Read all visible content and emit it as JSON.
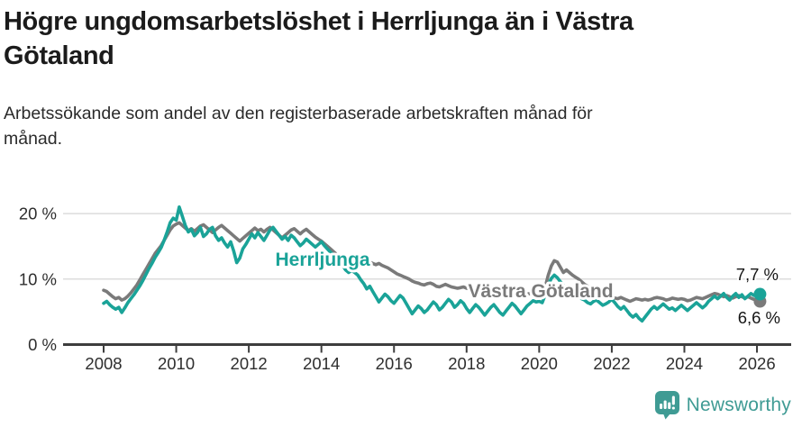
{
  "header": {
    "title_line1": "Högre ungdomsarbetslöshet i Herrljunga än i Västra",
    "title_line2": "Götaland",
    "subtitle_line1": "Arbetssökande som andel av den registerbaserade arbetskraften månad för",
    "subtitle_line2": "månad."
  },
  "footer": {
    "brand": "Newsworthy",
    "brand_color": "#3f9b94",
    "logo_icon": "newsworthy-speech-bubble-bar-chart-icon"
  },
  "chart_data": {
    "type": "line",
    "title": "Högre ungdomsarbetslöshet i Herrljunga än i Västra Götaland",
    "subtitle": "Arbetssökande som andel av den registerbaserade arbetskraften månad för månad.",
    "x_unit": "year-month",
    "x_start_year": 2008,
    "points_per_year": 12,
    "xlim": [
      2008,
      2026.17
    ],
    "ylim": [
      0,
      22
    ],
    "grid": "horizontal",
    "grid_color": "#dcdcdc",
    "axis_color": "#3d3d3d",
    "x_ticks": [
      2008,
      2010,
      2012,
      2014,
      2016,
      2018,
      2020,
      2022,
      2024,
      2026
    ],
    "y_ticks": [
      {
        "value": 0,
        "label": "0 %"
      },
      {
        "value": 10,
        "label": "10 %"
      },
      {
        "value": 20,
        "label": "20 %"
      }
    ],
    "series": [
      {
        "name": "Herrljunga",
        "color": "#1aa398",
        "end_value": 7.7,
        "end_label": "7,7 %",
        "values": [
          6.3,
          6.6,
          6.1,
          5.7,
          5.4,
          5.7,
          4.9,
          5.6,
          6.4,
          7.0,
          7.6,
          8.3,
          9.0,
          9.8,
          10.7,
          11.6,
          12.4,
          13.3,
          14.0,
          14.8,
          15.9,
          17.2,
          18.6,
          19.3,
          19.0,
          21.0,
          19.6,
          18.2,
          17.2,
          17.6,
          16.6,
          17.1,
          17.9,
          16.5,
          16.9,
          17.6,
          17.9,
          16.6,
          15.9,
          16.3,
          15.5,
          14.9,
          15.7,
          14.3,
          12.5,
          13.2,
          14.6,
          15.3,
          16.1,
          16.9,
          16.3,
          17.1,
          16.5,
          15.9,
          16.7,
          17.5,
          17.9,
          17.3,
          16.7,
          16.1,
          16.5,
          15.9,
          16.7,
          16.3,
          15.7,
          15.1,
          15.5,
          16.1,
          15.7,
          15.3,
          14.9,
          15.3,
          15.7,
          15.1,
          14.6,
          14.1,
          13.7,
          13.3,
          12.7,
          12.1,
          11.4,
          11.0,
          11.3,
          11.0,
          10.6,
          9.9,
          9.3,
          8.5,
          8.9,
          8.1,
          7.3,
          6.5,
          7.1,
          7.7,
          7.3,
          6.7,
          6.3,
          6.9,
          7.5,
          7.1,
          6.3,
          5.5,
          4.7,
          5.3,
          5.9,
          5.5,
          4.9,
          5.3,
          5.9,
          6.5,
          6.1,
          5.3,
          5.7,
          6.3,
          6.9,
          6.5,
          5.7,
          6.1,
          6.7,
          6.3,
          5.5,
          4.9,
          5.5,
          6.1,
          5.7,
          5.1,
          4.5,
          5.1,
          5.7,
          6.1,
          5.5,
          4.9,
          4.5,
          5.1,
          5.7,
          6.3,
          5.9,
          5.3,
          4.7,
          5.3,
          5.9,
          6.3,
          6.7,
          6.5,
          6.6,
          6.4,
          7.6,
          9.1,
          10.1,
          10.6,
          10.2,
          9.6,
          9.0,
          8.6,
          8.2,
          8.0,
          7.8,
          7.4,
          7.0,
          6.8,
          6.4,
          6.2,
          6.6,
          6.8,
          6.4,
          6.0,
          6.2,
          6.5,
          6.9,
          6.4,
          5.8,
          5.4,
          5.8,
          5.2,
          4.6,
          4.2,
          4.6,
          4.0,
          3.6,
          4.2,
          4.8,
          5.4,
          5.8,
          5.4,
          5.8,
          6.2,
          5.8,
          5.4,
          5.6,
          5.2,
          5.6,
          6.0,
          5.6,
          5.2,
          5.6,
          6.0,
          6.4,
          6.0,
          5.6,
          6.0,
          6.6,
          7.0,
          7.4,
          7.0,
          7.4,
          7.8,
          7.2,
          6.8,
          7.4,
          7.8,
          7.2,
          7.6,
          7.0,
          7.4,
          7.8,
          7.5,
          7.6,
          7.7
        ]
      },
      {
        "name": "Västra Götaland",
        "color": "#7a7a7a",
        "end_value": 6.6,
        "end_label": "6,6 %",
        "values": [
          8.3,
          8.1,
          7.7,
          7.3,
          7.0,
          7.2,
          6.8,
          7.0,
          7.4,
          7.9,
          8.5,
          9.1,
          9.9,
          10.7,
          11.5,
          12.3,
          13.1,
          13.9,
          14.5,
          15.1,
          15.9,
          16.7,
          17.5,
          18.1,
          18.4,
          18.6,
          18.2,
          17.8,
          17.4,
          17.7,
          17.3,
          17.7,
          18.1,
          18.3,
          17.9,
          17.5,
          17.1,
          17.5,
          17.9,
          18.2,
          17.8,
          17.4,
          17.0,
          16.6,
          16.2,
          15.8,
          16.2,
          16.6,
          17.0,
          17.4,
          17.8,
          17.4,
          17.6,
          17.2,
          17.6,
          17.9,
          17.5,
          17.1,
          16.7,
          16.3,
          16.7,
          17.1,
          17.5,
          17.7,
          17.3,
          16.9,
          17.3,
          17.6,
          17.2,
          16.8,
          16.4,
          16.1,
          15.8,
          15.4,
          15.0,
          14.6,
          14.2,
          13.8,
          13.4,
          13.0,
          12.7,
          12.4,
          12.2,
          12.1,
          12.3,
          12.5,
          12.6,
          12.4,
          12.6,
          12.4,
          12.2,
          12.4,
          12.1,
          11.9,
          11.7,
          11.4,
          11.1,
          10.8,
          10.6,
          10.4,
          10.2,
          10.0,
          9.7,
          9.5,
          9.4,
          9.2,
          9.1,
          9.3,
          9.4,
          9.2,
          8.9,
          8.8,
          9.0,
          9.2,
          9.0,
          8.8,
          8.7,
          8.6,
          8.7,
          8.8,
          8.6,
          8.5,
          8.4,
          8.6,
          8.8,
          8.6,
          8.4,
          8.2,
          8.1,
          8.2,
          8.3,
          8.2,
          8.1,
          8.0,
          7.9,
          8.1,
          8.3,
          8.1,
          7.9,
          7.8,
          7.7,
          7.8,
          7.9,
          8.0,
          8.1,
          8.0,
          8.8,
          10.6,
          12.0,
          12.8,
          12.6,
          11.8,
          11.0,
          11.4,
          11.0,
          10.6,
          10.3,
          10.0,
          9.6,
          9.2,
          8.9,
          8.6,
          8.3,
          8.6,
          8.3,
          8.0,
          7.8,
          7.6,
          7.3,
          7.1,
          7.0,
          7.2,
          7.0,
          6.8,
          6.6,
          6.8,
          7.0,
          6.9,
          6.8,
          6.9,
          6.8,
          6.9,
          7.1,
          7.2,
          7.1,
          7.0,
          6.8,
          6.9,
          7.1,
          7.0,
          6.9,
          7.0,
          6.9,
          6.7,
          6.8,
          7.0,
          7.2,
          7.1,
          7.0,
          7.2,
          7.4,
          7.6,
          7.8,
          7.7,
          7.5,
          7.3,
          7.5,
          7.3,
          7.1,
          7.3,
          7.5,
          7.3,
          7.1,
          7.3,
          7.1,
          6.9,
          6.8,
          6.6
        ]
      }
    ],
    "legend_position": "inline-labels"
  }
}
